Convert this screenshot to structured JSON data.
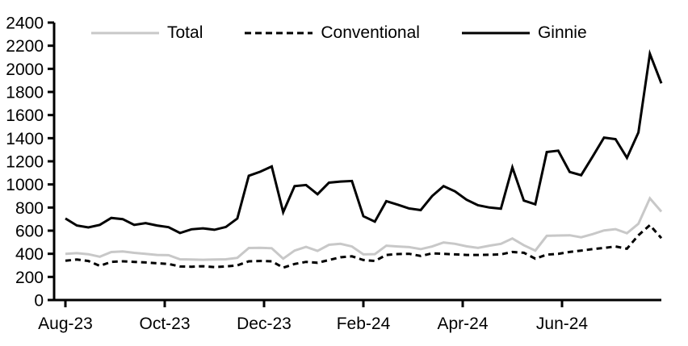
{
  "chart_data": {
    "type": "line",
    "title": "",
    "xlabel": "",
    "ylabel": "",
    "grid": false,
    "legend_position": "top",
    "x_unit": "weekly observations, Aug-2023 through Aug-2024",
    "x_tick_labels": [
      "Aug-23",
      "Oct-23",
      "Dec-23",
      "Feb-24",
      "Apr-24",
      "Jun-24"
    ],
    "x_tick_month_positions": [
      0,
      2,
      4,
      6,
      8,
      10
    ],
    "x_month_span": 12,
    "ylim": [
      0,
      2400
    ],
    "y_tick_step": 200,
    "y_tick_labels": [
      0,
      200,
      400,
      600,
      800,
      1000,
      1200,
      1400,
      1600,
      1800,
      2000,
      2200,
      2400
    ],
    "axis_color": "#000000",
    "series": [
      {
        "name": "Total",
        "color": "#c8c8c8",
        "dash": "solid",
        "width": 3,
        "values": [
          400,
          405,
          396,
          375,
          415,
          420,
          408,
          400,
          390,
          388,
          352,
          350,
          348,
          350,
          352,
          365,
          450,
          452,
          448,
          358,
          428,
          460,
          425,
          478,
          486,
          463,
          395,
          397,
          470,
          463,
          458,
          440,
          463,
          498,
          486,
          465,
          451,
          470,
          486,
          532,
          474,
          428,
          555,
          558,
          560,
          543,
          570,
          602,
          613,
          578,
          660,
          880,
          765
        ]
      },
      {
        "name": "Conventional",
        "color": "#000000",
        "dash": "dashed",
        "width": 3,
        "values": [
          340,
          350,
          338,
          296,
          330,
          335,
          330,
          325,
          318,
          312,
          290,
          288,
          292,
          285,
          290,
          300,
          335,
          338,
          335,
          280,
          312,
          330,
          322,
          346,
          370,
          378,
          346,
          338,
          390,
          398,
          400,
          381,
          404,
          400,
          395,
          390,
          390,
          392,
          395,
          416,
          409,
          358,
          393,
          400,
          416,
          428,
          440,
          451,
          463,
          444,
          560,
          648,
          535
        ]
      },
      {
        "name": "Ginnie",
        "color": "#000000",
        "dash": "solid",
        "width": 3,
        "values": [
          705,
          645,
          628,
          650,
          710,
          700,
          650,
          665,
          645,
          630,
          580,
          612,
          620,
          608,
          632,
          705,
          1075,
          1110,
          1155,
          760,
          985,
          995,
          915,
          1015,
          1025,
          1030,
          725,
          678,
          855,
          825,
          792,
          778,
          900,
          985,
          940,
          868,
          820,
          800,
          790,
          1148,
          860,
          828,
          1280,
          1292,
          1108,
          1080,
          1240,
          1405,
          1392,
          1230,
          1450,
          2130,
          1875
        ]
      }
    ]
  }
}
